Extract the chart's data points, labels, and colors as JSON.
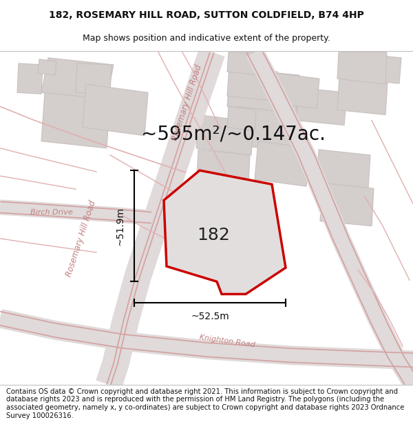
{
  "title_line1": "182, ROSEMARY HILL ROAD, SUTTON COLDFIELD, B74 4HP",
  "title_line2": "Map shows position and indicative extent of the property.",
  "area_label": "~595m²/~0.147ac.",
  "plot_number": "182",
  "dim_vertical": "~51.9m",
  "dim_horizontal": "~52.5m",
  "footer_text": "Contains OS data © Crown copyright and database right 2021. This information is subject to Crown copyright and database rights 2023 and is reproduced with the permission of HM Land Registry. The polygons (including the associated geometry, namely x, y co-ordinates) are subject to Crown copyright and database rights 2023 Ordnance Survey 100026316.",
  "bg_color": "#f5f0f0",
  "map_bg": "#f0eeed",
  "plot_fill": "#e8e8e8",
  "plot_edge": "#cc0000",
  "road_color_light": "#e8b8b8",
  "road_color_dark": "#d49090",
  "road_fill": "#e8e0e0",
  "block_color": "#d4cecc",
  "block_edge": "#c8c0be",
  "title_fontsize": 10,
  "subtitle_fontsize": 9,
  "area_fontsize": 20,
  "plot_num_fontsize": 18,
  "dim_fontsize": 10,
  "footer_fontsize": 7.2,
  "road_label_color": "#c08080",
  "street_label_fontsize": 8.5
}
